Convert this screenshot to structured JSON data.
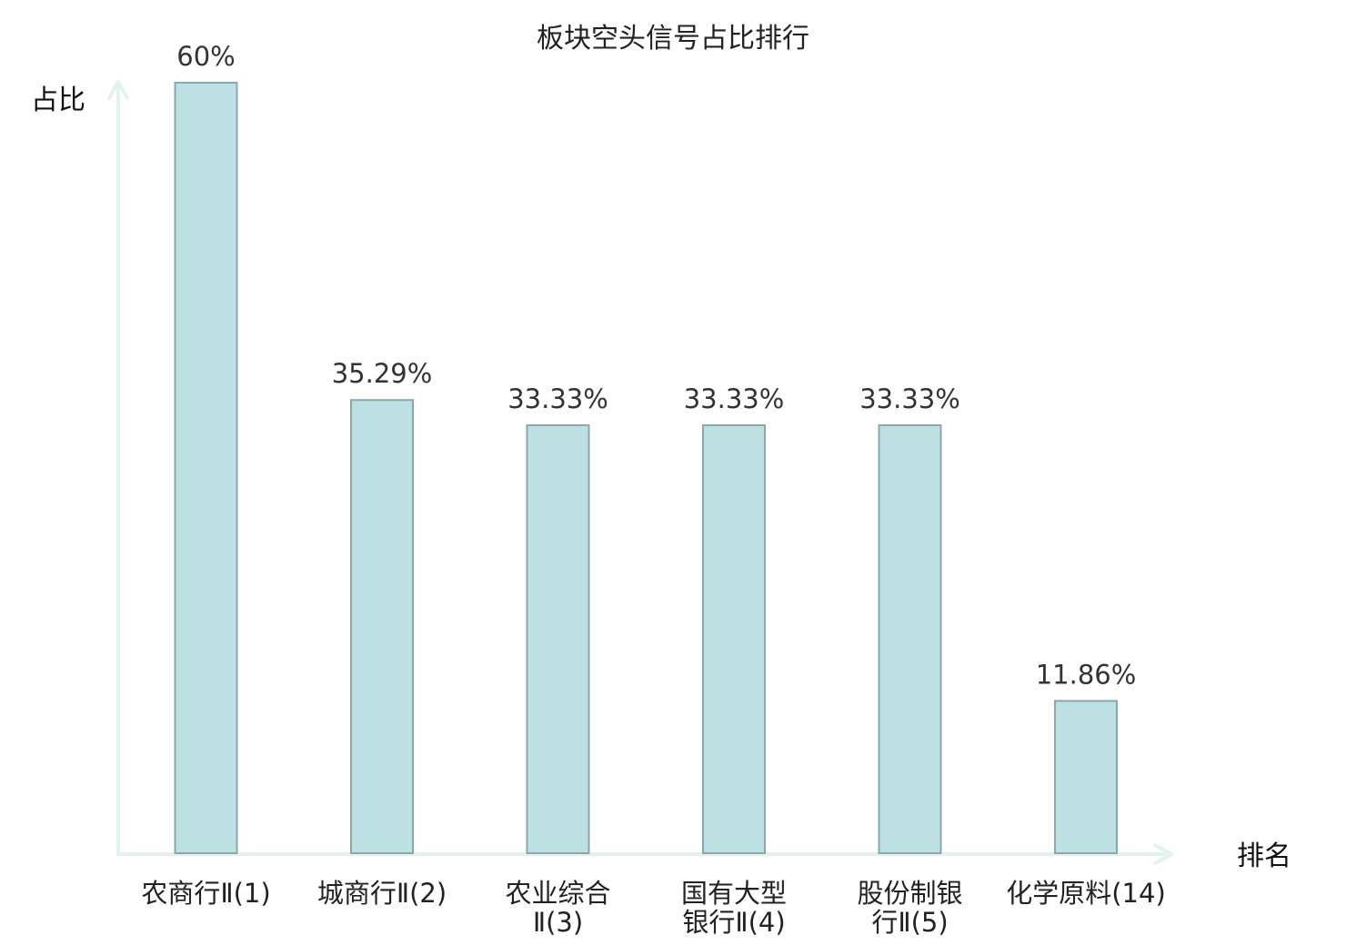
{
  "chart_data": {
    "type": "bar",
    "title": "板块空头信号占比排行",
    "xlabel": "排名",
    "ylabel": "占比",
    "categories": [
      [
        "农商行Ⅱ(1)"
      ],
      [
        "城商行Ⅱ(2)"
      ],
      [
        "农业综合",
        "Ⅱ(3)"
      ],
      [
        "国有大型",
        "银行Ⅱ(4)"
      ],
      [
        "股份制银",
        "行Ⅱ(5)"
      ],
      [
        "化学原料(14)"
      ]
    ],
    "values": [
      60,
      35.29,
      33.33,
      33.33,
      33.33,
      11.86
    ],
    "value_labels": [
      "60%",
      "35.29%",
      "33.33%",
      "33.33%",
      "33.33%",
      "11.86%"
    ],
    "highlight_index": 5,
    "ylim": [
      0,
      60
    ],
    "grid": false,
    "colors": {
      "bar_fill": "#bde0e2",
      "bar_stroke": "#8aa8ab",
      "axis": "#e1f3f1",
      "highlight_text": "#e02020",
      "text": "#222222"
    }
  }
}
